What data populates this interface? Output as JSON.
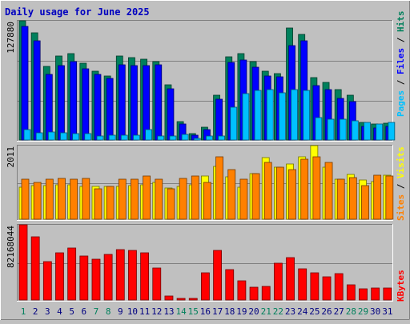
{
  "chart_data": {
    "title": "Daily usage for June 2025",
    "type": "bar",
    "days": [
      "1",
      "2",
      "3",
      "4",
      "5",
      "6",
      "7",
      "8",
      "9",
      "10",
      "11",
      "12",
      "13",
      "14",
      "15",
      "16",
      "17",
      "18",
      "19",
      "20",
      "21",
      "22",
      "23",
      "24",
      "25",
      "26",
      "27",
      "28",
      "29",
      "30",
      "31"
    ],
    "weekend_days": [
      1,
      7,
      8,
      14,
      15,
      21,
      22,
      28,
      29
    ],
    "colors": {
      "title": "#0000c0",
      "weekday_label": "#000080",
      "weekend_label": "#00805c",
      "hits": "#00805c",
      "files": "#0000ff",
      "pages": "#00c0ff",
      "visits": "#ffff00",
      "sites": "#ff8000",
      "kbytes": "#ff0000",
      "background": "#c0c0c0",
      "grid": "#808080"
    },
    "panels": [
      {
        "name": "hits-files-pages",
        "ymax_label": "127880",
        "ymax": 127880,
        "legend": [
          {
            "text": "Pages",
            "key": "pages"
          },
          {
            "text": " / ",
            "key": "sep"
          },
          {
            "text": "Files",
            "key": "files"
          },
          {
            "text": " / ",
            "key": "sep"
          },
          {
            "text": "Hits",
            "key": "hits"
          }
        ],
        "series": [
          {
            "name": "Hits",
            "key": "hits",
            "values": [
              128000,
              115000,
              79000,
              90000,
              93000,
              82000,
              74000,
              69000,
              90000,
              88000,
              87000,
              84000,
              59000,
              20000,
              7000,
              14000,
              48000,
              89000,
              93000,
              84000,
              74000,
              71000,
              120000,
              113000,
              67000,
              62000,
              54000,
              48000,
              19000,
              17000,
              18000
            ]
          },
          {
            "name": "Files",
            "key": "files",
            "values": [
              122000,
              106000,
              70000,
              80000,
              84000,
              76000,
              70000,
              66000,
              81000,
              80000,
              80000,
              81000,
              55000,
              17000,
              5000,
              11000,
              44000,
              83000,
              86000,
              78000,
              69000,
              68000,
              101000,
              106000,
              58000,
              54000,
              45000,
              41000,
              15000,
              13000,
              15000
            ]
          },
          {
            "name": "Pages",
            "key": "pages",
            "values": [
              11000,
              8000,
              8500,
              8000,
              6900,
              6500,
              4000,
              5000,
              4900,
              5000,
              11000,
              4700,
              4700,
              6000,
              2000,
              4000,
              4000,
              35000,
              50000,
              53000,
              54000,
              51000,
              54000,
              53000,
              24000,
              22000,
              22000,
              21000,
              19000,
              17000,
              19000
            ]
          }
        ]
      },
      {
        "name": "visits-sites",
        "ymax_label": "2011",
        "ymax": 2011,
        "legend": [
          {
            "text": "Sites",
            "key": "sites"
          },
          {
            "text": " / ",
            "key": "sep"
          },
          {
            "text": "Visits",
            "key": "visits"
          }
        ],
        "series": [
          {
            "name": "Visits",
            "key": "visits",
            "values": [
              880,
              920,
              910,
              950,
              950,
              900,
              890,
              890,
              900,
              920,
              950,
              1000,
              850,
              900,
              950,
              1180,
              1450,
              1150,
              880,
              1250,
              1680,
              1430,
              1500,
              1700,
              2011,
              1410,
              1100,
              1230,
              1070,
              1030,
              1200
            ]
          },
          {
            "name": "Sites",
            "key": "sites",
            "values": [
              1090,
              1000,
              1100,
              1110,
              1090,
              1110,
              830,
              900,
              1090,
              1100,
              1180,
              1100,
              830,
              1120,
              1180,
              1000,
              1700,
              1350,
              1100,
              1250,
              1560,
              1410,
              1360,
              1640,
              1700,
              1560,
              1100,
              1130,
              920,
              1200,
              1180
            ]
          }
        ]
      },
      {
        "name": "kbytes",
        "ymax_label": "82168044",
        "ymax": 82168044,
        "legend": [
          {
            "text": "KBytes",
            "key": "kbytes"
          }
        ],
        "series": [
          {
            "name": "KBytes",
            "key": "kbytes",
            "values": [
              82168044,
              69000000,
              42000000,
              52000000,
              57000000,
              48000000,
              45000000,
              50000000,
              55000000,
              54000000,
              52000000,
              35000000,
              4000000,
              1500000,
              1500000,
              30000000,
              54000000,
              33000000,
              21000000,
              14000000,
              15000000,
              40000000,
              46000000,
              34000000,
              30000000,
              25000000,
              29000000,
              17000000,
              12000000,
              13000000,
              13000000
            ]
          }
        ]
      }
    ]
  }
}
